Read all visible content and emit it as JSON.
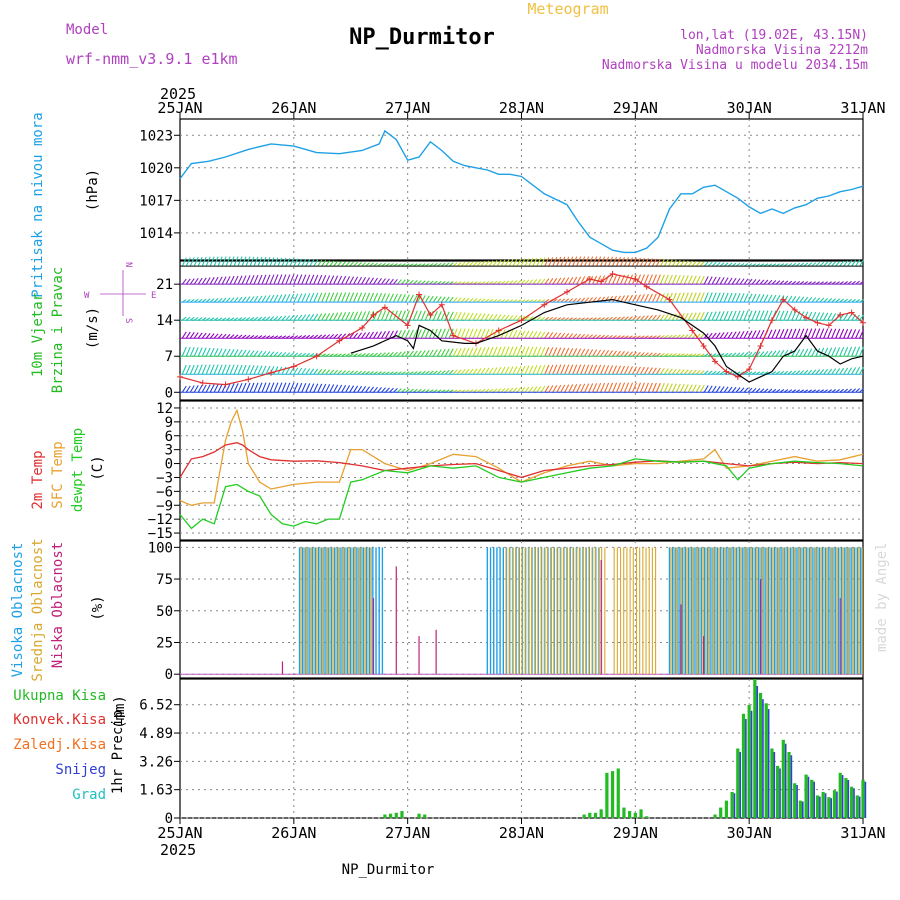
{
  "header": {
    "model_label": "Model",
    "model_name": "wrf-nmm_v3.9.1 e1km",
    "title": "NP_Durmitor",
    "meteogram": "Meteogram",
    "lonlat": "lon,lat (19.02E, 43.15N)",
    "altitude": "Nadmorska Visina 2212m",
    "model_altitude": "Nadmorska Visina u modelu 2034.15m",
    "year_top": "2025",
    "year_bottom": "2025",
    "footer_station": "NP_Durmitor",
    "watermark": "made by Angel"
  },
  "colors": {
    "pressure": "#1ea0e6",
    "wind_label": "#22bb22",
    "wind_speed": "#000000",
    "gust": "#e03030",
    "t2m": "#e03030",
    "tsfc": "#e8a030",
    "dewpoint": "#22cc22",
    "cloud_high": "#1ea0e6",
    "cloud_mid": "#d8a830",
    "cloud_low": "#c0207a",
    "rain_total": "#22bb22",
    "rain_conv": "#e03030",
    "rain_frz": "#f07020",
    "snow": "#3040d0",
    "hail": "#20c0c0",
    "compass": "#b040c0"
  },
  "chart_data": {
    "x_axis": {
      "ticks": [
        "25JAN",
        "26JAN",
        "27JAN",
        "28JAN",
        "29JAN",
        "30JAN",
        "31JAN"
      ],
      "range_days": [
        0,
        6
      ]
    },
    "panels": [
      {
        "id": "pressure",
        "type": "line",
        "ylabel": "Pritisak na nivou mora",
        "unit": "(hPa)",
        "yticks": [
          1014,
          1017,
          1020,
          1023
        ],
        "ylim": [
          1011.5,
          1024.5
        ],
        "series": [
          {
            "name": "Pritisak na nivou mora",
            "x": [
              0,
              0.1,
              0.25,
              0.4,
              0.6,
              0.8,
              1.0,
              1.2,
              1.4,
              1.6,
              1.75,
              1.8,
              1.9,
              2.0,
              2.1,
              2.2,
              2.3,
              2.4,
              2.5,
              2.6,
              2.7,
              2.8,
              2.9,
              3.0,
              3.2,
              3.4,
              3.5,
              3.6,
              3.7,
              3.8,
              3.9,
              4.0,
              4.1,
              4.2,
              4.3,
              4.4,
              4.5,
              4.6,
              4.7,
              4.8,
              4.9,
              5.0,
              5.1,
              5.2,
              5.3,
              5.4,
              5.5,
              5.6,
              5.7,
              5.8,
              5.9,
              6.0
            ],
            "values": [
              1019.0,
              1020.4,
              1020.6,
              1021.0,
              1021.7,
              1022.2,
              1022.0,
              1021.4,
              1021.3,
              1021.6,
              1022.2,
              1023.4,
              1022.6,
              1020.7,
              1021.0,
              1022.4,
              1021.6,
              1020.6,
              1020.2,
              1020.0,
              1019.8,
              1019.4,
              1019.4,
              1019.2,
              1017.6,
              1016.6,
              1015.0,
              1013.6,
              1013.0,
              1012.4,
              1012.2,
              1012.2,
              1012.6,
              1013.6,
              1016.2,
              1017.6,
              1017.6,
              1018.2,
              1018.4,
              1017.8,
              1017.2,
              1016.4,
              1015.8,
              1016.2,
              1015.8,
              1016.3,
              1016.6,
              1017.2,
              1017.4,
              1017.8,
              1018.0,
              1018.3
            ]
          }
        ]
      },
      {
        "id": "wind",
        "type": "line",
        "ylabel": [
          "10m Vjetar",
          "Brzina i Pravac"
        ],
        "unit": "(m/s)",
        "compass": {
          "n": "N",
          "s": "S",
          "e": "E",
          "w": "W"
        },
        "yticks": [
          0,
          7,
          14,
          21
        ],
        "ylim": [
          -1.5,
          25.5
        ],
        "series": [
          {
            "name": "wind_speed",
            "x": [
              1.5,
              1.7,
              1.9,
              2.0,
              2.05,
              2.1,
              2.2,
              2.3,
              2.5,
              2.6,
              2.8,
              3.0,
              3.2,
              3.4,
              3.6,
              3.8,
              4.0,
              4.2,
              4.4,
              4.5,
              4.6,
              4.7,
              4.8,
              5.0,
              5.1,
              5.2,
              5.3,
              5.4,
              5.5,
              5.6,
              5.7,
              5.8,
              5.9,
              6.0
            ],
            "values": [
              7.6,
              9.0,
              11.0,
              10.0,
              8.5,
              13.0,
              12.0,
              10.0,
              9.5,
              9.5,
              11.0,
              13.0,
              15.5,
              17.0,
              17.5,
              18.0,
              17.0,
              16.0,
              14.5,
              13.0,
              11.5,
              9.0,
              5.0,
              2.0,
              3.0,
              4.0,
              7.0,
              8.0,
              11.0,
              8.0,
              7.0,
              5.5,
              6.5,
              7.0
            ]
          },
          {
            "name": "gust",
            "x": [
              0,
              0.2,
              0.4,
              0.6,
              0.8,
              1.0,
              1.2,
              1.4,
              1.6,
              1.7,
              1.8,
              2.0,
              2.1,
              2.2,
              2.3,
              2.4,
              2.6,
              2.8,
              3.0,
              3.2,
              3.4,
              3.6,
              3.7,
              3.8,
              4.0,
              4.1,
              4.3,
              4.5,
              4.6,
              4.7,
              4.8,
              4.9,
              5.0,
              5.1,
              5.2,
              5.3,
              5.4,
              5.5,
              5.6,
              5.7,
              5.8,
              5.9,
              6.0
            ],
            "values": [
              3.0,
              1.8,
              1.5,
              2.5,
              3.8,
              5.0,
              7.0,
              10.0,
              12.5,
              15.0,
              16.5,
              13.0,
              19.0,
              15.0,
              17.0,
              11.0,
              9.5,
              12.0,
              14.0,
              17.0,
              19.5,
              22.0,
              21.5,
              23.0,
              22.0,
              20.5,
              18.0,
              12.0,
              9.0,
              6.0,
              4.0,
              3.0,
              4.5,
              9.0,
              14.0,
              18.0,
              16.0,
              14.5,
              13.5,
              13.0,
              15.0,
              15.5,
              13.5
            ]
          }
        ]
      },
      {
        "id": "temperature",
        "type": "line",
        "ylabel": [
          "2m Temp",
          "SFC Temp",
          "dewpt Temp"
        ],
        "unit": "(C)",
        "yticks": [
          -15,
          -12,
          -9,
          -6,
          -3,
          0,
          3,
          6,
          9,
          12
        ],
        "ylim": [
          -16.5,
          13.5
        ],
        "series": [
          {
            "name": "2m Temp",
            "x": [
              0,
              0.1,
              0.2,
              0.3,
              0.4,
              0.5,
              0.55,
              0.6,
              0.7,
              0.8,
              1.0,
              1.2,
              1.4,
              1.6,
              1.8,
              2.0,
              2.2,
              2.4,
              2.6,
              2.8,
              3.0,
              3.2,
              3.4,
              3.6,
              3.8,
              4.0,
              4.2,
              4.4,
              4.6,
              4.8,
              5.0,
              5.2,
              5.4,
              5.6,
              5.8,
              6.0
            ],
            "values": [
              -3.0,
              1.0,
              1.5,
              2.5,
              4.0,
              4.5,
              4.0,
              3.0,
              1.5,
              0.8,
              0.5,
              0.6,
              0.2,
              -0.5,
              -1.5,
              -1.0,
              -0.5,
              -0.2,
              0.0,
              -1.5,
              -3.0,
              -1.5,
              -1.0,
              -0.5,
              -0.2,
              0.3,
              0.6,
              0.3,
              0.5,
              0.0,
              -0.5,
              0.0,
              0.3,
              0.0,
              0.2,
              0.0
            ]
          },
          {
            "name": "SFC Temp",
            "x": [
              0,
              0.1,
              0.2,
              0.3,
              0.4,
              0.45,
              0.5,
              0.55,
              0.6,
              0.7,
              0.8,
              1.0,
              1.2,
              1.4,
              1.5,
              1.6,
              1.8,
              2.0,
              2.2,
              2.4,
              2.6,
              2.8,
              3.0,
              3.2,
              3.4,
              3.6,
              3.8,
              4.0,
              4.2,
              4.4,
              4.6,
              4.7,
              4.8,
              5.0,
              5.2,
              5.4,
              5.6,
              5.8,
              6.0
            ],
            "values": [
              -8.0,
              -9.0,
              -8.5,
              -8.5,
              5.0,
              9.0,
              11.5,
              7.0,
              0.0,
              -4.0,
              -5.5,
              -4.5,
              -4.0,
              -4.0,
              3.0,
              3.0,
              0.0,
              -1.5,
              0.0,
              2.0,
              1.5,
              -1.0,
              -4.0,
              -2.0,
              -0.5,
              0.5,
              -0.5,
              0.0,
              0.0,
              0.5,
              1.0,
              3.0,
              -1.0,
              -0.5,
              0.5,
              1.5,
              0.5,
              0.8,
              2.0
            ]
          },
          {
            "name": "dewpt Temp",
            "x": [
              0,
              0.1,
              0.2,
              0.3,
              0.4,
              0.5,
              0.6,
              0.7,
              0.8,
              0.9,
              1.0,
              1.1,
              1.2,
              1.3,
              1.4,
              1.5,
              1.6,
              1.8,
              2.0,
              2.2,
              2.4,
              2.6,
              2.8,
              3.0,
              3.2,
              3.4,
              3.6,
              3.8,
              4.0,
              4.2,
              4.4,
              4.6,
              4.8,
              4.9,
              5.0,
              5.2,
              5.4,
              5.6,
              5.8,
              6.0
            ],
            "values": [
              -11.0,
              -14.0,
              -12.0,
              -13.0,
              -5.0,
              -4.5,
              -6.0,
              -7.0,
              -11.0,
              -13.0,
              -13.5,
              -12.5,
              -13.0,
              -12.0,
              -12.0,
              -4.0,
              -3.5,
              -1.5,
              -2.0,
              -0.5,
              -1.0,
              -0.5,
              -3.0,
              -4.0,
              -3.0,
              -2.0,
              -1.0,
              -0.5,
              1.0,
              0.5,
              0.3,
              0.5,
              -0.5,
              -3.5,
              -1.0,
              0.0,
              0.5,
              0.2,
              0.0,
              -0.5
            ]
          }
        ]
      },
      {
        "id": "clouds",
        "type": "bar",
        "ylabel": [
          "Visoka Oblacnost",
          "Srednja Oblacnost",
          "Niska Oblacnost"
        ],
        "unit": "(%)",
        "yticks": [
          0,
          25,
          50,
          75,
          100
        ],
        "ylim": [
          -3,
          105
        ],
        "high_cover": [
          {
            "from": 1.05,
            "to": 1.8,
            "value": 100
          },
          {
            "from": 2.7,
            "to": 3.7,
            "value": 100
          },
          {
            "from": 4.3,
            "to": 6.0,
            "value": 100
          }
        ],
        "mid_cover": [
          {
            "from": 1.05,
            "to": 1.7,
            "value": 100
          },
          {
            "from": 2.85,
            "to": 3.75,
            "value": 100
          },
          {
            "from": 3.8,
            "to": 4.2,
            "value": 100
          },
          {
            "from": 4.3,
            "to": 6.0,
            "value": 100
          }
        ],
        "low_cover_spikes": [
          [
            0.9,
            10
          ],
          [
            1.7,
            60
          ],
          [
            1.9,
            85
          ],
          [
            2.1,
            30
          ],
          [
            2.25,
            35
          ],
          [
            3.7,
            90
          ],
          [
            4.4,
            55
          ],
          [
            4.6,
            30
          ],
          [
            5.1,
            75
          ],
          [
            5.8,
            60
          ]
        ]
      },
      {
        "id": "precip",
        "type": "bar",
        "ylabel": "1hr Precip",
        "unit": "(mm)",
        "yticks": [
          0,
          1.63,
          3.26,
          4.89,
          6.52
        ],
        "ylim": [
          0,
          8.0
        ],
        "legend": [
          "Ukupna Kisa",
          "Konvek.Kisa",
          "Zaledj.Kisa",
          "Snijeg",
          "Grad"
        ],
        "total_rain": {
          "x": [
            1.8,
            1.85,
            1.9,
            1.95,
            2.1,
            2.15,
            3.55,
            3.6,
            3.65,
            3.7,
            3.75,
            3.8,
            3.85,
            3.9,
            3.95,
            4.0,
            4.05,
            4.1,
            4.15,
            4.2,
            4.25,
            4.3,
            4.35,
            4.4,
            4.45,
            4.5,
            4.55,
            4.6,
            4.65,
            4.7,
            4.75,
            4.8,
            4.85,
            4.9,
            4.95,
            5.0,
            5.05,
            5.1,
            5.15,
            5.2,
            5.25,
            5.3,
            5.35,
            5.4,
            5.45,
            5.5,
            5.55,
            5.6,
            5.65,
            5.7,
            5.75,
            5.8,
            5.85,
            5.9,
            5.95,
            6.0
          ],
          "values": [
            0.2,
            0.25,
            0.3,
            0.4,
            0.25,
            0.2,
            0.2,
            0.3,
            0.3,
            0.5,
            2.6,
            2.7,
            2.85,
            0.6,
            0.4,
            0.3,
            0.5,
            0.1,
            0.0,
            0.0,
            0.0,
            0.0,
            0.0,
            0.0,
            0.0,
            0.0,
            0.0,
            0.0,
            0.0,
            0.2,
            0.6,
            1.0,
            1.5,
            4.0,
            6.0,
            6.5,
            8.0,
            7.2,
            6.6,
            4.0,
            3.0,
            4.5,
            3.8,
            2.0,
            1.0,
            2.5,
            2.2,
            1.3,
            1.5,
            1.2,
            1.6,
            2.6,
            2.3,
            1.8,
            1.3,
            2.2
          ]
        }
      }
    ]
  }
}
